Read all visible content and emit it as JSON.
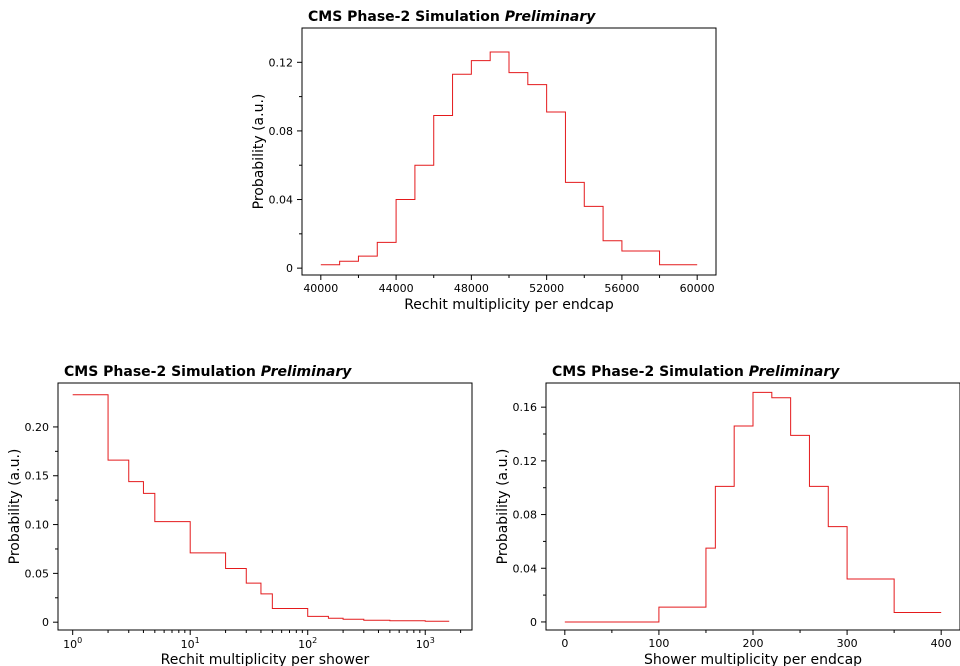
{
  "chart_data": [
    {
      "type": "histogram",
      "title": "CMS Phase-2 Simulation",
      "title_emphasis": "Preliminary",
      "xlabel": "Rechit multiplicity per endcap",
      "ylabel": "Probability (a.u.)",
      "xscale": "linear",
      "xlim": [
        39000,
        61000
      ],
      "ylim": [
        -0.004,
        0.14
      ],
      "xticks": [
        40000,
        44000,
        48000,
        52000,
        56000,
        60000
      ],
      "xtick_labels": [
        "40000",
        "44000",
        "48000",
        "52000",
        "56000",
        "60000"
      ],
      "yticks": [
        0,
        0.04,
        0.08,
        0.12
      ],
      "ytick_labels": [
        "0",
        "0.04",
        "0.08",
        "0.12"
      ],
      "bin_edges": [
        40000,
        41000,
        42000,
        43000,
        44000,
        45000,
        46000,
        47000,
        48000,
        49000,
        50000,
        51000,
        52000,
        53000,
        54000,
        55000,
        56000,
        58000,
        60000
      ],
      "values": [
        0.002,
        0.004,
        0.007,
        0.015,
        0.04,
        0.06,
        0.089,
        0.113,
        0.121,
        0.126,
        0.114,
        0.107,
        0.091,
        0.05,
        0.036,
        0.016,
        0.01,
        0.002
      ],
      "grid": false,
      "color": "#e41a1c"
    },
    {
      "type": "histogram",
      "title": "CMS Phase-2 Simulation",
      "title_emphasis": "Preliminary",
      "xlabel": "Rechit multiplicity per shower",
      "ylabel": "Probability (a.u.)",
      "xscale": "log",
      "xlim": [
        0.75,
        2500
      ],
      "ylim": [
        -0.008,
        0.245
      ],
      "xticks": [
        1,
        10,
        100,
        1000
      ],
      "xtick_labels": [
        {
          "base": "10",
          "exp": "0"
        },
        {
          "base": "10",
          "exp": "1"
        },
        {
          "base": "10",
          "exp": "2"
        },
        {
          "base": "10",
          "exp": "3"
        }
      ],
      "yticks": [
        0,
        0.05,
        0.1,
        0.15,
        0.2
      ],
      "ytick_labels": [
        "0",
        "0.05",
        "0.10",
        "0.15",
        "0.20"
      ],
      "bin_edges": [
        1,
        2,
        3,
        4,
        5,
        10,
        20,
        30,
        40,
        50,
        100,
        150,
        200,
        300,
        500,
        1000,
        1600
      ],
      "values": [
        0.233,
        0.166,
        0.144,
        0.132,
        0.103,
        0.071,
        0.055,
        0.04,
        0.029,
        0.014,
        0.006,
        0.004,
        0.003,
        0.002,
        0.0015,
        0.001
      ],
      "grid": false,
      "color": "#e41a1c"
    },
    {
      "type": "histogram",
      "title": "CMS Phase-2 Simulation",
      "title_emphasis": "Preliminary",
      "xlabel": "Shower multiplicity per endcap",
      "ylabel": "Probability (a.u.)",
      "xscale": "linear",
      "xlim": [
        -20,
        420
      ],
      "ylim": [
        -0.006,
        0.178
      ],
      "xticks": [
        0,
        100,
        200,
        300,
        400
      ],
      "xtick_labels": [
        "0",
        "100",
        "200",
        "300",
        "400"
      ],
      "yticks": [
        0,
        0.04,
        0.08,
        0.12,
        0.16
      ],
      "ytick_labels": [
        "0",
        "0.04",
        "0.08",
        "0.12",
        "0.16"
      ],
      "bin_edges": [
        0,
        100,
        150,
        160,
        180,
        200,
        220,
        240,
        260,
        280,
        300,
        350,
        400
      ],
      "values": [
        0,
        0.011,
        0.055,
        0.101,
        0.146,
        0.171,
        0.167,
        0.139,
        0.101,
        0.071,
        0.032,
        0.007
      ],
      "grid": false,
      "color": "#e41a1c"
    }
  ]
}
